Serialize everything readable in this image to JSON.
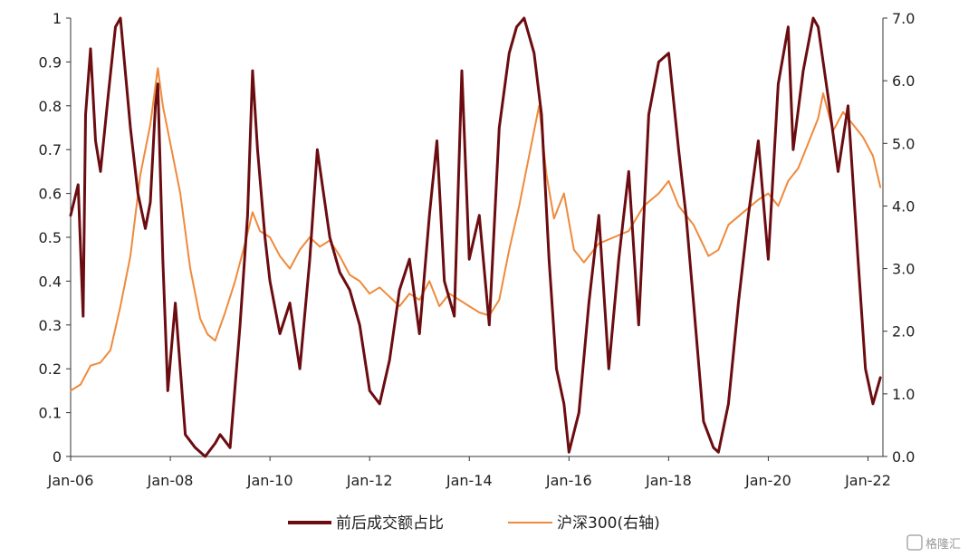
{
  "chart_data": {
    "type": "line",
    "title": "",
    "xlabel": "",
    "ylabel": "",
    "x_ticks": [
      "Jan-06",
      "Jan-08",
      "Jan-10",
      "Jan-12",
      "Jan-14",
      "Jan-16",
      "Jan-18",
      "Jan-20",
      "Jan-22"
    ],
    "y_left_ticks": [
      "0",
      "0.1",
      "0.2",
      "0.3",
      "0.4",
      "0.5",
      "0.6",
      "0.7",
      "0.8",
      "0.9",
      "1"
    ],
    "y_right_ticks": [
      "0.0",
      "1.0",
      "2.0",
      "3.0",
      "4.0",
      "5.0",
      "6.0",
      "7.0"
    ],
    "ylim_left": [
      0,
      1
    ],
    "ylim_right": [
      0,
      7
    ],
    "xlim": [
      2006.0,
      2022.3
    ],
    "grid": false,
    "legend_position": "bottom",
    "series": [
      {
        "name": "前后成交额占比",
        "axis": "left",
        "color": "#6b0c10",
        "x": [
          2006.0,
          2006.15,
          2006.25,
          2006.3,
          2006.4,
          2006.5,
          2006.6,
          2006.75,
          2006.9,
          2007.0,
          2007.2,
          2007.35,
          2007.5,
          2007.6,
          2007.7,
          2007.75,
          2007.85,
          2007.95,
          2008.1,
          2008.3,
          2008.5,
          2008.7,
          2008.9,
          2009.0,
          2009.2,
          2009.4,
          2009.55,
          2009.65,
          2009.75,
          2009.9,
          2010.0,
          2010.2,
          2010.4,
          2010.6,
          2010.8,
          2010.95,
          2011.2,
          2011.4,
          2011.6,
          2011.8,
          2012.0,
          2012.2,
          2012.4,
          2012.6,
          2012.8,
          2013.0,
          2013.2,
          2013.35,
          2013.5,
          2013.7,
          2013.85,
          2014.0,
          2014.2,
          2014.4,
          2014.6,
          2014.8,
          2014.95,
          2015.1,
          2015.3,
          2015.45,
          2015.6,
          2015.75,
          2015.9,
          2016.0,
          2016.2,
          2016.4,
          2016.6,
          2016.8,
          2017.0,
          2017.2,
          2017.4,
          2017.6,
          2017.8,
          2018.0,
          2018.2,
          2018.35,
          2018.5,
          2018.7,
          2018.9,
          2019.0,
          2019.2,
          2019.4,
          2019.6,
          2019.8,
          2020.0,
          2020.2,
          2020.4,
          2020.5,
          2020.7,
          2020.9,
          2021.0,
          2021.2,
          2021.4,
          2021.6,
          2021.8,
          2021.95,
          2022.1,
          2022.25
        ],
        "y": [
          0.55,
          0.62,
          0.32,
          0.78,
          0.93,
          0.72,
          0.65,
          0.82,
          0.98,
          1.0,
          0.75,
          0.6,
          0.52,
          0.58,
          0.8,
          0.85,
          0.45,
          0.15,
          0.35,
          0.05,
          0.02,
          0.0,
          0.03,
          0.05,
          0.02,
          0.3,
          0.55,
          0.88,
          0.7,
          0.5,
          0.4,
          0.28,
          0.35,
          0.2,
          0.45,
          0.7,
          0.5,
          0.42,
          0.38,
          0.3,
          0.15,
          0.12,
          0.22,
          0.38,
          0.45,
          0.28,
          0.55,
          0.72,
          0.4,
          0.32,
          0.88,
          0.45,
          0.55,
          0.3,
          0.75,
          0.92,
          0.98,
          1.0,
          0.92,
          0.78,
          0.45,
          0.2,
          0.12,
          0.01,
          0.1,
          0.35,
          0.55,
          0.2,
          0.45,
          0.65,
          0.3,
          0.78,
          0.9,
          0.92,
          0.7,
          0.55,
          0.35,
          0.08,
          0.02,
          0.01,
          0.12,
          0.35,
          0.55,
          0.72,
          0.45,
          0.85,
          0.98,
          0.7,
          0.88,
          1.0,
          0.98,
          0.82,
          0.65,
          0.8,
          0.45,
          0.2,
          0.12,
          0.18
        ]
      },
      {
        "name": "沪深300(右轴)",
        "axis": "right",
        "color": "#ef8a3c",
        "x": [
          2006.0,
          2006.2,
          2006.4,
          2006.6,
          2006.8,
          2007.0,
          2007.2,
          2007.4,
          2007.6,
          2007.75,
          2007.85,
          2008.0,
          2008.2,
          2008.4,
          2008.6,
          2008.75,
          2008.9,
          2009.1,
          2009.3,
          2009.5,
          2009.65,
          2009.8,
          2010.0,
          2010.2,
          2010.4,
          2010.6,
          2010.8,
          2011.0,
          2011.2,
          2011.4,
          2011.6,
          2011.8,
          2012.0,
          2012.2,
          2012.4,
          2012.6,
          2012.8,
          2013.0,
          2013.2,
          2013.4,
          2013.6,
          2013.8,
          2014.0,
          2014.2,
          2014.4,
          2014.6,
          2014.8,
          2015.0,
          2015.2,
          2015.4,
          2015.55,
          2015.7,
          2015.9,
          2016.1,
          2016.3,
          2016.6,
          2016.9,
          2017.2,
          2017.5,
          2017.8,
          2018.0,
          2018.2,
          2018.5,
          2018.8,
          2019.0,
          2019.2,
          2019.5,
          2019.8,
          2020.0,
          2020.2,
          2020.4,
          2020.6,
          2020.8,
          2021.0,
          2021.1,
          2021.3,
          2021.5,
          2021.7,
          2021.9,
          2022.1,
          2022.25
        ],
        "y": [
          1.05,
          1.15,
          1.45,
          1.5,
          1.7,
          2.4,
          3.2,
          4.5,
          5.3,
          6.2,
          5.6,
          5.0,
          4.2,
          3.0,
          2.2,
          1.95,
          1.85,
          2.3,
          2.8,
          3.4,
          3.9,
          3.6,
          3.5,
          3.2,
          3.0,
          3.3,
          3.5,
          3.35,
          3.45,
          3.2,
          2.9,
          2.8,
          2.6,
          2.7,
          2.55,
          2.4,
          2.6,
          2.5,
          2.8,
          2.4,
          2.6,
          2.5,
          2.4,
          2.3,
          2.25,
          2.5,
          3.3,
          4.0,
          4.8,
          5.6,
          4.5,
          3.8,
          4.2,
          3.3,
          3.1,
          3.4,
          3.5,
          3.6,
          4.0,
          4.2,
          4.4,
          4.0,
          3.7,
          3.2,
          3.3,
          3.7,
          3.9,
          4.1,
          4.2,
          4.0,
          4.4,
          4.6,
          5.0,
          5.4,
          5.8,
          5.2,
          5.5,
          5.3,
          5.1,
          4.8,
          4.3
        ]
      }
    ]
  },
  "watermark": "格隆汇"
}
